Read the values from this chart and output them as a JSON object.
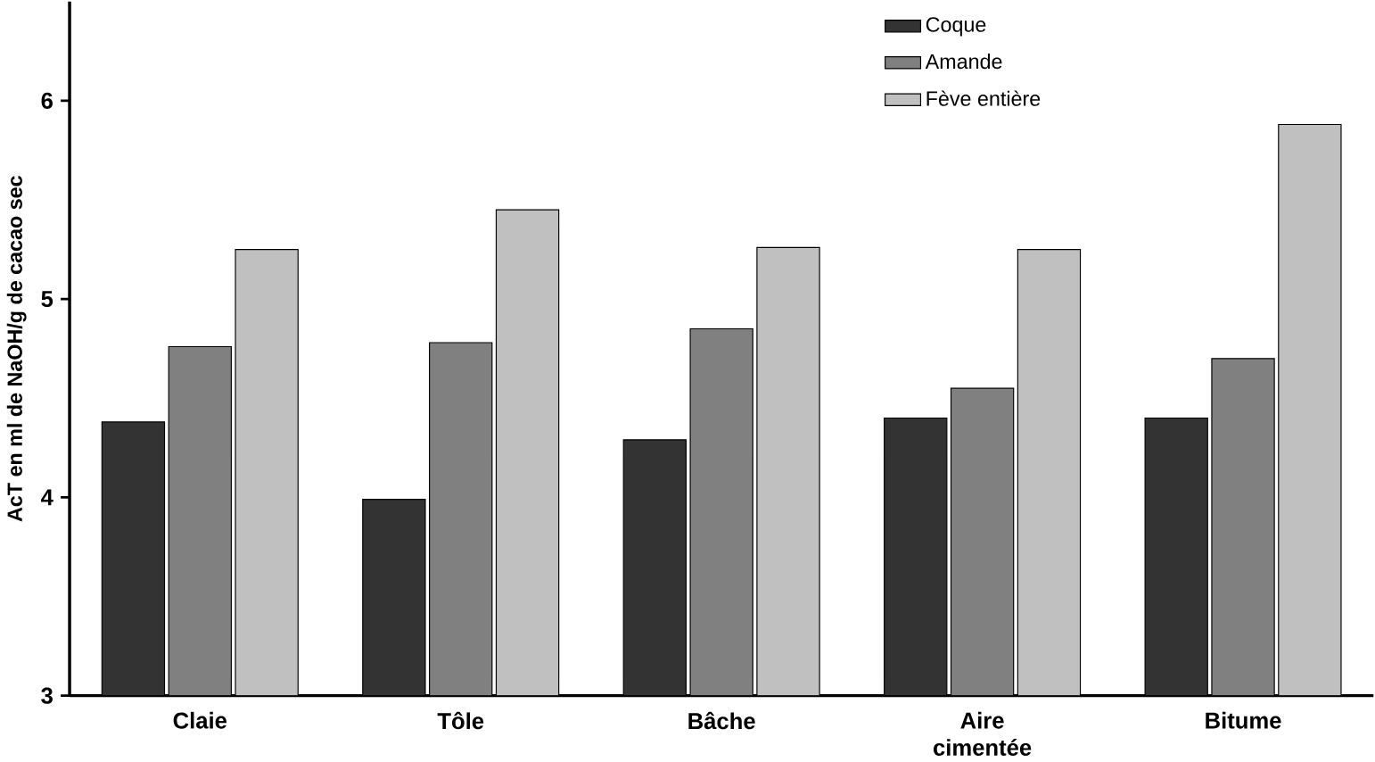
{
  "chart_data": {
    "type": "bar",
    "ylabel": "AcT en ml de NaOH/g de cacao sec",
    "categories": [
      "Claie",
      "Tôle",
      "Bâche",
      "Aire cimentée",
      "Bitume"
    ],
    "series": [
      {
        "name": "Coque",
        "color": "#333333",
        "values": [
          4.38,
          3.99,
          4.29,
          4.4,
          4.4
        ]
      },
      {
        "name": "Amande",
        "color": "#808080",
        "values": [
          4.76,
          4.78,
          4.85,
          4.55,
          4.7
        ]
      },
      {
        "name": "Fève entière",
        "color": "#c0c0c0",
        "values": [
          5.25,
          5.45,
          5.26,
          5.25,
          5.88
        ]
      }
    ],
    "ylim": [
      3,
      6.5
    ],
    "yticks": [
      3,
      4,
      5,
      6
    ],
    "grid": false,
    "legend": "top right"
  }
}
